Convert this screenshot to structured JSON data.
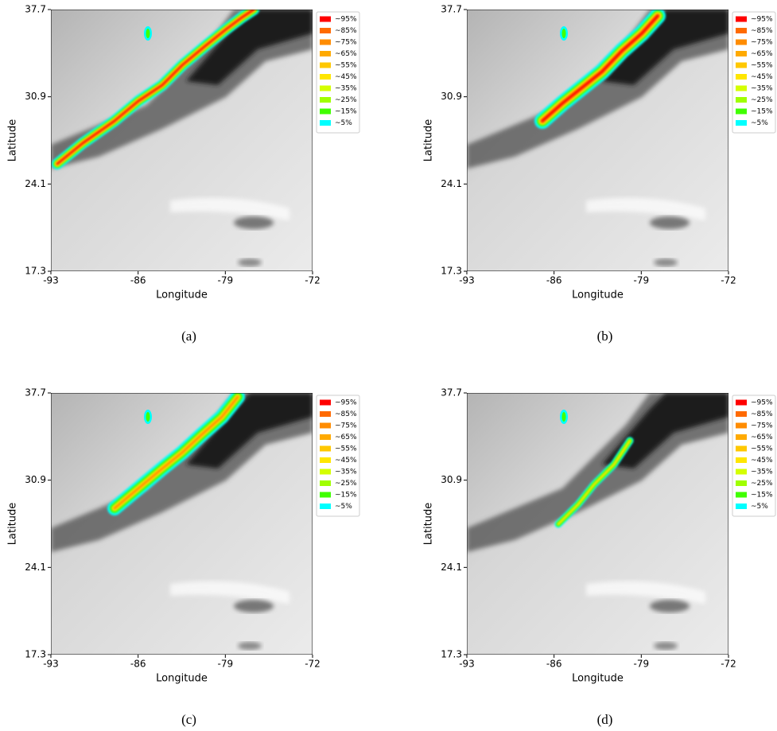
{
  "chart_data": [
    {
      "type": "map",
      "caption": "(a)",
      "xlabel": "Longitude",
      "ylabel": "Latitude",
      "xlim": [
        -93,
        -72
      ],
      "ylim": [
        17.3,
        37.7
      ],
      "xticks": [
        -93,
        -86,
        -79,
        -72
      ],
      "yticks": [
        17.3,
        24.1,
        30.9,
        37.7
      ],
      "legend": [
        {
          "label": "~95%",
          "color": "#ff0000"
        },
        {
          "label": "~85%",
          "color": "#ff6a00"
        },
        {
          "label": "~75%",
          "color": "#ff8c00"
        },
        {
          "label": "~65%",
          "color": "#ffaa00"
        },
        {
          "label": "~55%",
          "color": "#ffc800"
        },
        {
          "label": "~45%",
          "color": "#ffe600"
        },
        {
          "label": "~35%",
          "color": "#d4ff00"
        },
        {
          "label": "~25%",
          "color": "#a0ff00"
        },
        {
          "label": "~15%",
          "color": "#40ff00"
        },
        {
          "label": "~5%",
          "color": "#00ffff"
        }
      ]
    },
    {
      "type": "map",
      "caption": "(b)",
      "xlabel": "Longitude",
      "ylabel": "Latitude",
      "xlim": [
        -93,
        -72
      ],
      "ylim": [
        17.3,
        37.7
      ],
      "xticks": [
        -93,
        -86,
        -79,
        -72
      ],
      "yticks": [
        17.3,
        24.1,
        30.9,
        37.7
      ],
      "legend": [
        {
          "label": "~95%",
          "color": "#ff0000"
        },
        {
          "label": "~85%",
          "color": "#ff6a00"
        },
        {
          "label": "~75%",
          "color": "#ff8c00"
        },
        {
          "label": "~65%",
          "color": "#ffaa00"
        },
        {
          "label": "~55%",
          "color": "#ffc800"
        },
        {
          "label": "~45%",
          "color": "#ffe600"
        },
        {
          "label": "~35%",
          "color": "#d4ff00"
        },
        {
          "label": "~25%",
          "color": "#a0ff00"
        },
        {
          "label": "~15%",
          "color": "#40ff00"
        },
        {
          "label": "~5%",
          "color": "#00ffff"
        }
      ]
    },
    {
      "type": "map",
      "caption": "(c)",
      "xlabel": "Longitude",
      "ylabel": "Latitude",
      "xlim": [
        -93,
        -72
      ],
      "ylim": [
        17.3,
        37.7
      ],
      "xticks": [
        -93,
        -86,
        -79,
        -72
      ],
      "yticks": [
        17.3,
        24.1,
        30.9,
        37.7
      ],
      "legend": [
        {
          "label": "~95%",
          "color": "#ff0000"
        },
        {
          "label": "~85%",
          "color": "#ff6a00"
        },
        {
          "label": "~75%",
          "color": "#ff8c00"
        },
        {
          "label": "~65%",
          "color": "#ffaa00"
        },
        {
          "label": "~55%",
          "color": "#ffc800"
        },
        {
          "label": "~45%",
          "color": "#ffe600"
        },
        {
          "label": "~35%",
          "color": "#d4ff00"
        },
        {
          "label": "~25%",
          "color": "#a0ff00"
        },
        {
          "label": "~15%",
          "color": "#40ff00"
        },
        {
          "label": "~5%",
          "color": "#00ffff"
        }
      ]
    },
    {
      "type": "map",
      "caption": "(d)",
      "xlabel": "Longitude",
      "ylabel": "Latitude",
      "xlim": [
        -93,
        -72
      ],
      "ylim": [
        17.3,
        37.7
      ],
      "xticks": [
        -93,
        -86,
        -79,
        -72
      ],
      "yticks": [
        17.3,
        24.1,
        30.9,
        37.7
      ],
      "legend": [
        {
          "label": "~95%",
          "color": "#ff0000"
        },
        {
          "label": "~85%",
          "color": "#ff6a00"
        },
        {
          "label": "~75%",
          "color": "#ff8c00"
        },
        {
          "label": "~65%",
          "color": "#ffaa00"
        },
        {
          "label": "~55%",
          "color": "#ffc800"
        },
        {
          "label": "~45%",
          "color": "#ffe600"
        },
        {
          "label": "~35%",
          "color": "#d4ff00"
        },
        {
          "label": "~25%",
          "color": "#a0ff00"
        },
        {
          "label": "~15%",
          "color": "#40ff00"
        },
        {
          "label": "~5%",
          "color": "#00ffff"
        }
      ]
    }
  ]
}
